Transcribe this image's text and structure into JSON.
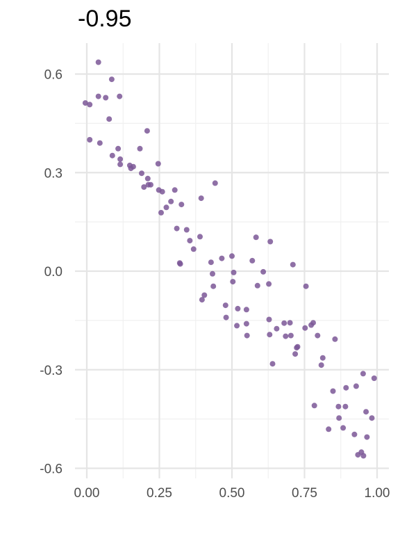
{
  "chart_data": {
    "type": "scatter",
    "title": "-0.95",
    "xlabel": "",
    "ylabel": "",
    "xlim": [
      -0.01,
      1.01
    ],
    "ylim": [
      -0.62,
      0.69
    ],
    "xticks": [
      0.0,
      0.25,
      0.5,
      0.75,
      1.0
    ],
    "xtick_labels": [
      "0.00",
      "0.25",
      "0.50",
      "0.75",
      "1.00"
    ],
    "yticks": [
      -0.6,
      -0.3,
      0.0,
      0.3,
      0.6
    ],
    "ytick_labels": [
      "-0.6",
      "-0.3",
      "0.0",
      "0.3",
      "0.6"
    ],
    "grid": true,
    "point_color": "#7B5796",
    "points": [
      [
        -0.005,
        0.512
      ],
      [
        0.01,
        0.507
      ],
      [
        0.01,
        0.4
      ],
      [
        0.04,
        0.636
      ],
      [
        0.04,
        0.532
      ],
      [
        0.045,
        0.39
      ],
      [
        0.065,
        0.528
      ],
      [
        0.077,
        0.463
      ],
      [
        0.086,
        0.584
      ],
      [
        0.088,
        0.352
      ],
      [
        0.108,
        0.373
      ],
      [
        0.113,
        0.532
      ],
      [
        0.115,
        0.341
      ],
      [
        0.115,
        0.325
      ],
      [
        0.148,
        0.322
      ],
      [
        0.152,
        0.313
      ],
      [
        0.16,
        0.318
      ],
      [
        0.183,
        0.373
      ],
      [
        0.189,
        0.298
      ],
      [
        0.197,
        0.256
      ],
      [
        0.208,
        0.427
      ],
      [
        0.21,
        0.282
      ],
      [
        0.212,
        0.263
      ],
      [
        0.22,
        0.263
      ],
      [
        0.246,
        0.327
      ],
      [
        0.248,
        0.247
      ],
      [
        0.256,
        0.178
      ],
      [
        0.26,
        0.242
      ],
      [
        0.274,
        0.194
      ],
      [
        0.29,
        0.212
      ],
      [
        0.303,
        0.247
      ],
      [
        0.31,
        0.13
      ],
      [
        0.32,
        0.025
      ],
      [
        0.322,
        0.022
      ],
      [
        0.326,
        0.203
      ],
      [
        0.344,
        0.126
      ],
      [
        0.355,
        0.093
      ],
      [
        0.368,
        0.067
      ],
      [
        0.39,
        0.105
      ],
      [
        0.394,
        0.222
      ],
      [
        0.397,
        -0.087
      ],
      [
        0.405,
        -0.073
      ],
      [
        0.428,
        0.027
      ],
      [
        0.433,
        -0.008
      ],
      [
        0.436,
        -0.046
      ],
      [
        0.442,
        0.268
      ],
      [
        0.465,
        0.039
      ],
      [
        0.478,
        -0.104
      ],
      [
        0.48,
        -0.141
      ],
      [
        0.5,
        0.046
      ],
      [
        0.503,
        -0.032
      ],
      [
        0.506,
        -0.004
      ],
      [
        0.517,
        -0.166
      ],
      [
        0.52,
        -0.114
      ],
      [
        0.55,
        -0.117
      ],
      [
        0.55,
        -0.16
      ],
      [
        0.552,
        -0.196
      ],
      [
        0.57,
        0.032
      ],
      [
        0.583,
        0.103
      ],
      [
        0.588,
        -0.044
      ],
      [
        0.608,
        -0.002
      ],
      [
        0.627,
        -0.039
      ],
      [
        0.628,
        -0.147
      ],
      [
        0.63,
        -0.193
      ],
      [
        0.632,
        0.09
      ],
      [
        0.64,
        -0.282
      ],
      [
        0.654,
        -0.175
      ],
      [
        0.68,
        -0.158
      ],
      [
        0.685,
        -0.198
      ],
      [
        0.7,
        -0.157
      ],
      [
        0.703,
        -0.196
      ],
      [
        0.71,
        0.02
      ],
      [
        0.718,
        -0.252
      ],
      [
        0.723,
        -0.233
      ],
      [
        0.726,
        -0.23
      ],
      [
        0.752,
        -0.173
      ],
      [
        0.755,
        -0.046
      ],
      [
        0.773,
        -0.164
      ],
      [
        0.78,
        -0.157
      ],
      [
        0.784,
        -0.409
      ],
      [
        0.795,
        -0.196
      ],
      [
        0.808,
        -0.286
      ],
      [
        0.813,
        -0.264
      ],
      [
        0.833,
        -0.481
      ],
      [
        0.848,
        -0.365
      ],
      [
        0.855,
        -0.207
      ],
      [
        0.867,
        -0.412
      ],
      [
        0.869,
        -0.447
      ],
      [
        0.883,
        -0.477
      ],
      [
        0.891,
        -0.412
      ],
      [
        0.893,
        -0.355
      ],
      [
        0.922,
        -0.497
      ],
      [
        0.928,
        -0.35
      ],
      [
        0.934,
        -0.559
      ],
      [
        0.946,
        -0.551
      ],
      [
        0.952,
        -0.312
      ],
      [
        0.953,
        -0.562
      ],
      [
        0.962,
        -0.428
      ],
      [
        0.965,
        -0.505
      ],
      [
        0.982,
        -0.447
      ],
      [
        0.99,
        -0.326
      ]
    ]
  }
}
